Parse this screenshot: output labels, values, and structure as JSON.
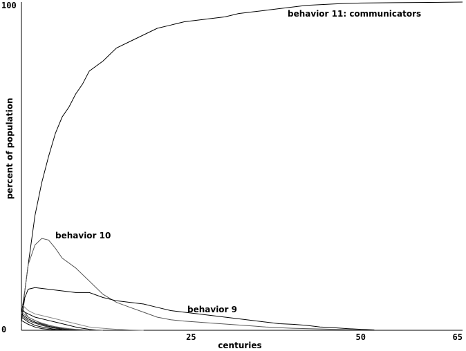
{
  "chart_data": {
    "type": "line",
    "title": "",
    "xlabel": "centuries",
    "ylabel": "percent of population",
    "xlim": [
      0,
      65
    ],
    "ylim": [
      0,
      100
    ],
    "x_ticks": [
      25,
      50,
      65
    ],
    "y_ticks": [
      0,
      100
    ],
    "grid": false,
    "legend": "none",
    "series": [
      {
        "name": "behavior 11: communicators",
        "color": "#000000",
        "x": [
          0,
          0.5,
          1,
          2,
          3,
          4,
          5,
          6,
          7,
          8,
          9,
          10,
          12,
          14,
          16,
          18,
          20,
          22,
          24,
          26,
          28,
          30,
          32,
          34,
          36,
          38,
          40,
          42,
          44,
          46,
          48,
          50,
          55,
          60,
          65
        ],
        "y": [
          5,
          12,
          20,
          35,
          45,
          53,
          60,
          65,
          68,
          72,
          75,
          79,
          82,
          86,
          88,
          90,
          92,
          93,
          94,
          94.5,
          95,
          95.5,
          96.5,
          97,
          97.5,
          98,
          98.5,
          99,
          99.2,
          99.4,
          99.6,
          99.7,
          99.8,
          99.9,
          100
        ]
      },
      {
        "name": "behavior 10",
        "color": "#555555",
        "x": [
          0,
          0.5,
          1,
          2,
          3,
          4,
          5,
          6,
          8,
          10,
          12,
          14,
          16,
          18,
          20,
          22,
          24,
          26,
          28,
          30,
          32,
          34,
          36,
          38,
          40,
          42,
          44,
          46,
          48,
          50
        ],
        "y": [
          2,
          12,
          20,
          26,
          28,
          27.5,
          25,
          22,
          19,
          15,
          11,
          8.5,
          7,
          5.5,
          4,
          3.2,
          2.8,
          2.5,
          2.2,
          1.9,
          1.6,
          1.3,
          1.0,
          0.8,
          0.6,
          0.5,
          0.4,
          0.3,
          0.2,
          0.1
        ]
      },
      {
        "name": "behavior 9",
        "color": "#000000",
        "x": [
          0,
          0.5,
          1,
          2,
          4,
          6,
          8,
          10,
          12,
          14,
          16,
          18,
          20,
          22,
          24,
          26,
          28,
          30,
          32,
          34,
          36,
          38,
          40,
          42,
          44,
          46,
          48,
          50,
          52
        ],
        "y": [
          3,
          10,
          12.5,
          13,
          12.5,
          12,
          11.5,
          11.5,
          10,
          9,
          8.5,
          8,
          7,
          6,
          5.5,
          5,
          4.5,
          4,
          3.5,
          3,
          2.5,
          2,
          1.8,
          1.5,
          1.0,
          0.8,
          0.5,
          0.3,
          0.1
        ]
      },
      {
        "name": "",
        "color": "#888888",
        "x": [
          0,
          1,
          2,
          3,
          4,
          5,
          6,
          7,
          8,
          9,
          10,
          12,
          14,
          16,
          18
        ],
        "y": [
          8,
          6,
          5,
          4.5,
          4,
          3.5,
          3,
          2.5,
          2,
          1.5,
          1,
          0.6,
          0.3,
          0.1,
          0
        ]
      },
      {
        "name": "",
        "color": "#000000",
        "x": [
          0,
          1,
          2,
          3,
          4,
          5,
          6,
          7,
          8,
          9,
          10,
          11,
          12
        ],
        "y": [
          6,
          5,
          4,
          3.5,
          3,
          2.5,
          2,
          1.5,
          1,
          0.6,
          0.3,
          0.1,
          0
        ]
      },
      {
        "name": "",
        "color": "#000000",
        "x": [
          0,
          1,
          2,
          3,
          4,
          5,
          6,
          7,
          8,
          9,
          10
        ],
        "y": [
          5,
          3.5,
          2.5,
          1.8,
          1.2,
          0.8,
          0.5,
          0.3,
          0.2,
          0.1,
          0
        ]
      },
      {
        "name": "",
        "color": "#000000",
        "x": [
          0,
          1,
          2,
          3,
          4,
          5,
          6,
          7,
          8
        ],
        "y": [
          4,
          2.5,
          1.5,
          1,
          0.6,
          0.3,
          0.2,
          0.1,
          0
        ]
      },
      {
        "name": "",
        "color": "#444444",
        "x": [
          0,
          1,
          2,
          3,
          4,
          5,
          6,
          7,
          8,
          10
        ],
        "y": [
          7,
          4,
          3,
          2,
          1.5,
          1,
          0.6,
          0.3,
          0.1,
          0
        ]
      },
      {
        "name": "",
        "color": "#000000",
        "x": [
          0,
          1,
          2,
          3,
          4,
          5,
          6
        ],
        "y": [
          3,
          1.8,
          1,
          0.5,
          0.3,
          0.1,
          0
        ]
      },
      {
        "name": "",
        "color": "#222222",
        "x": [
          0,
          1,
          2,
          3,
          4,
          5,
          6,
          7,
          8,
          9
        ],
        "y": [
          4.5,
          3,
          2.2,
          1.5,
          1,
          0.6,
          0.3,
          0.2,
          0.1,
          0
        ]
      },
      {
        "name": "",
        "color": "#666666",
        "x": [
          0,
          1,
          2,
          3,
          4,
          5,
          6,
          7,
          8,
          9,
          10,
          12
        ],
        "y": [
          5.5,
          4,
          3,
          2.2,
          1.6,
          1.1,
          0.8,
          0.5,
          0.3,
          0.2,
          0.1,
          0
        ]
      }
    ],
    "annotations": [
      {
        "text": "behavior 11: communicators",
        "series": 0
      },
      {
        "text": "behavior 10",
        "series": 1
      },
      {
        "text": "behavior 9",
        "series": 2
      }
    ]
  }
}
